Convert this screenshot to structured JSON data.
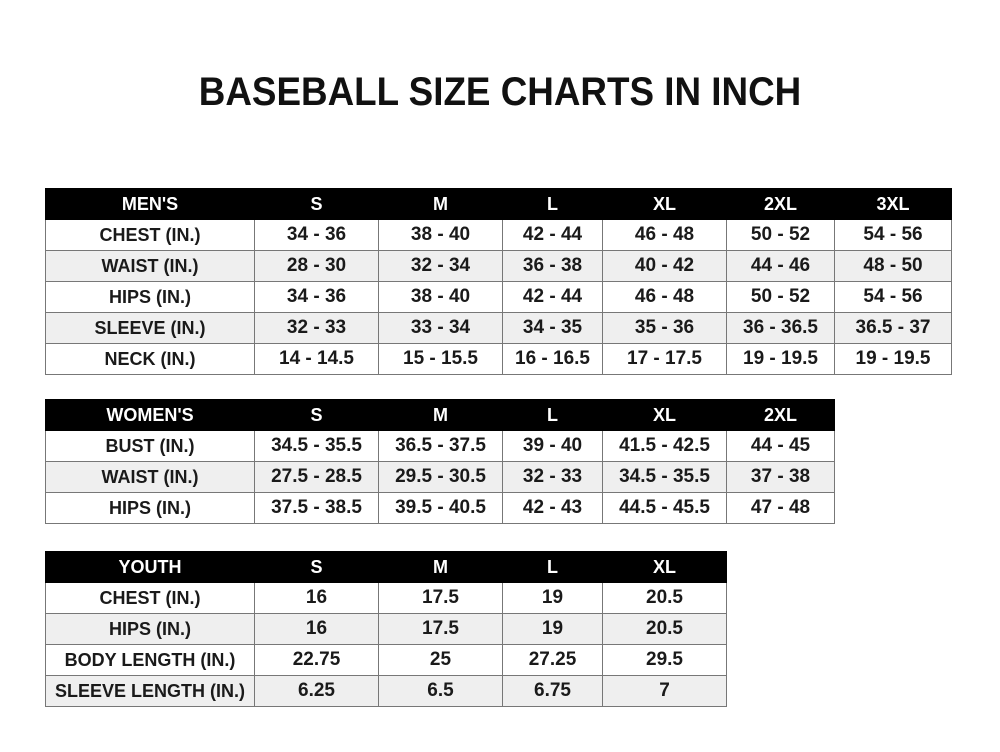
{
  "title": "BASEBALL SIZE CHARTS IN INCH",
  "mens": {
    "headers": [
      "MEN'S",
      "S",
      "M",
      "L",
      "XL",
      "2XL",
      "3XL"
    ],
    "rows": [
      [
        "CHEST (IN.)",
        "34 - 36",
        "38 - 40",
        "42 - 44",
        "46 - 48",
        "50 - 52",
        "54 - 56"
      ],
      [
        "WAIST (IN.)",
        "28 - 30",
        "32 - 34",
        "36 - 38",
        "40 - 42",
        "44 - 46",
        "48 - 50"
      ],
      [
        "HIPS (IN.)",
        "34 - 36",
        "38 - 40",
        "42 - 44",
        "46 - 48",
        "50 - 52",
        "54 - 56"
      ],
      [
        "SLEEVE (IN.)",
        "32 - 33",
        "33 - 34",
        "34 - 35",
        "35 - 36",
        "36 - 36.5",
        "36.5 - 37"
      ],
      [
        "NECK (IN.)",
        "14 - 14.5",
        "15 - 15.5",
        "16 - 16.5",
        "17 - 17.5",
        "19 - 19.5",
        "19 - 19.5"
      ]
    ]
  },
  "womens": {
    "headers": [
      "WOMEN'S",
      "S",
      "M",
      "L",
      "XL",
      "2XL"
    ],
    "rows": [
      [
        "BUST (IN.)",
        "34.5 - 35.5",
        "36.5 - 37.5",
        "39 - 40",
        "41.5 - 42.5",
        "44 - 45"
      ],
      [
        "WAIST (IN.)",
        "27.5 - 28.5",
        "29.5 - 30.5",
        "32 - 33",
        "34.5 - 35.5",
        "37 - 38"
      ],
      [
        "HIPS (IN.)",
        "37.5 - 38.5",
        "39.5 - 40.5",
        "42 - 43",
        "44.5 - 45.5",
        "47 - 48"
      ]
    ]
  },
  "youth": {
    "headers": [
      "YOUTH",
      "S",
      "M",
      "L",
      "XL"
    ],
    "rows": [
      [
        "CHEST (IN.)",
        "16",
        "17.5",
        "19",
        "20.5"
      ],
      [
        "HIPS (IN.)",
        "16",
        "17.5",
        "19",
        "20.5"
      ],
      [
        "BODY LENGTH (IN.)",
        "22.75",
        "25",
        "27.25",
        "29.5"
      ],
      [
        "SLEEVE LENGTH (IN.)",
        "6.25",
        "6.5",
        "6.75",
        "7"
      ]
    ]
  }
}
